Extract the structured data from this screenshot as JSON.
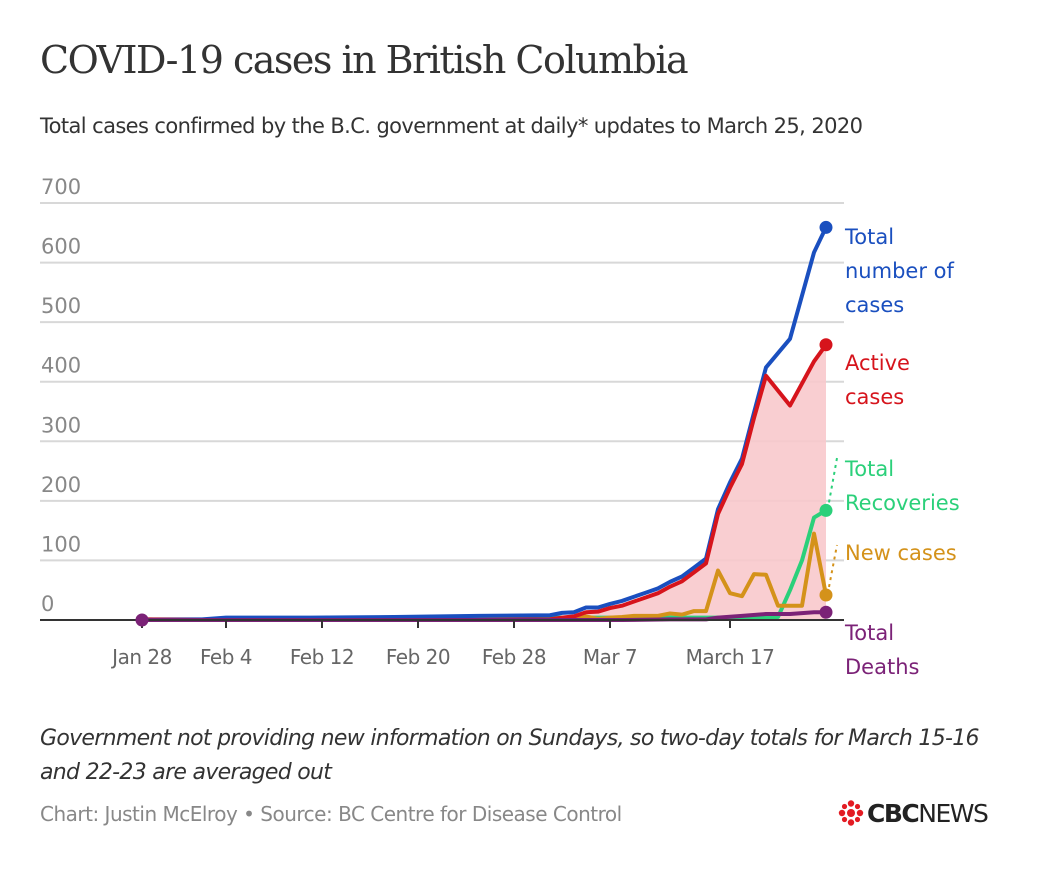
{
  "header": {
    "title": "COVID-19 cases in British Columbia",
    "subtitle": "Total cases confirmed by the B.C. government at daily* updates to March 25, 2020"
  },
  "footer": {
    "note": "Government not providing new information on Sundays, so two-day totals for March 15-16 and 22-23 are averaged out",
    "credit": "Chart: Justin McElroy • Source: BC Centre for Disease Control",
    "logo_text": "CBCNEWS",
    "logo_bold": "CBC",
    "logo_regular": "NEWS"
  },
  "colors": {
    "total": "#1a4fbf",
    "active": "#d6141c",
    "active_fill": "#f8c9cc",
    "recoveries": "#2bd07a",
    "new_cases": "#d4921a",
    "deaths": "#7b2277",
    "grid": "#d8d8d8",
    "axis": "#333333",
    "logo_red": "#e31b23"
  },
  "chart_data": {
    "type": "line",
    "title": "COVID-19 cases in British Columbia",
    "xlabel": "",
    "ylabel": "",
    "ylim": [
      0,
      700
    ],
    "yticks": [
      0,
      100,
      200,
      300,
      400,
      500,
      600,
      700
    ],
    "ytick_labels": [
      "0",
      "100",
      "200",
      "300",
      "400",
      "500",
      "600",
      "700"
    ],
    "grid": true,
    "x_start": "Jan 28",
    "x_unit": "days since Jan 28",
    "xticks": [
      {
        "day": 0,
        "label": "Jan 28"
      },
      {
        "day": 7,
        "label": "Feb 4"
      },
      {
        "day": 15,
        "label": "Feb 12"
      },
      {
        "day": 23,
        "label": "Feb 20"
      },
      {
        "day": 31,
        "label": "Feb 28"
      },
      {
        "day": 39,
        "label": "Mar 7"
      },
      {
        "day": 49,
        "label": "March 17"
      }
    ],
    "series": [
      {
        "key": "total",
        "name": "Total number of cases",
        "label_lines": [
          "Total",
          "number of",
          "cases"
        ],
        "x": [
          0,
          5,
          7,
          14,
          21,
          28,
          34,
          35,
          36,
          37,
          38,
          39,
          40,
          41,
          42,
          43,
          44,
          45,
          46,
          47,
          48,
          49,
          50,
          51,
          52,
          54,
          56,
          57
        ],
        "values": [
          1,
          1,
          4,
          4,
          5,
          7,
          8,
          12,
          13,
          21,
          21,
          27,
          32,
          39,
          46,
          53,
          64,
          73,
          88,
          103,
          186,
          231,
          271,
          348,
          424,
          472,
          617,
          659
        ]
      },
      {
        "key": "active",
        "name": "Active cases",
        "label_lines": [
          "Active",
          "cases"
        ],
        "x": [
          0,
          5,
          7,
          14,
          21,
          28,
          34,
          35,
          36,
          37,
          38,
          39,
          40,
          41,
          42,
          43,
          44,
          45,
          46,
          47,
          48,
          49,
          50,
          51,
          52,
          54,
          56,
          57
        ],
        "values": [
          1,
          0,
          0,
          0,
          0,
          0,
          1,
          4,
          6,
          13,
          14,
          20,
          24,
          31,
          38,
          45,
          56,
          65,
          80,
          95,
          178,
          222,
          262,
          339,
          410,
          360,
          434,
          462
        ]
      },
      {
        "key": "recoveries",
        "name": "Total Recoveries",
        "label_lines": [
          "Total",
          "Recoveries"
        ],
        "x": [
          0,
          7,
          21,
          34,
          40,
          45,
          48,
          52,
          53,
          54,
          55,
          56,
          57
        ],
        "values": [
          0,
          0,
          3,
          4,
          4,
          4,
          4,
          4,
          5,
          50,
          100,
          172,
          184
        ]
      },
      {
        "key": "new_cases",
        "name": "New cases",
        "label_lines": [
          "New cases"
        ],
        "x": [
          0,
          34,
          35,
          36,
          37,
          38,
          39,
          40,
          41,
          42,
          43,
          44,
          45,
          46,
          47,
          48,
          49,
          50,
          51,
          52,
          53,
          54,
          55,
          56,
          57
        ],
        "values": [
          0,
          1,
          2,
          1,
          6,
          2,
          4,
          5,
          7,
          7,
          7,
          11,
          9,
          15,
          15,
          83,
          45,
          40,
          77,
          76,
          24,
          24,
          24,
          145,
          42
        ]
      },
      {
        "key": "deaths",
        "name": "Total Deaths",
        "label_lines": [
          "Total",
          "Deaths"
        ],
        "x": [
          0,
          40,
          44,
          47,
          48,
          50,
          52,
          54,
          56,
          57
        ],
        "values": [
          0,
          0,
          1,
          1,
          4,
          7,
          10,
          10,
          13,
          13
        ]
      }
    ],
    "shaded_area": "active"
  }
}
